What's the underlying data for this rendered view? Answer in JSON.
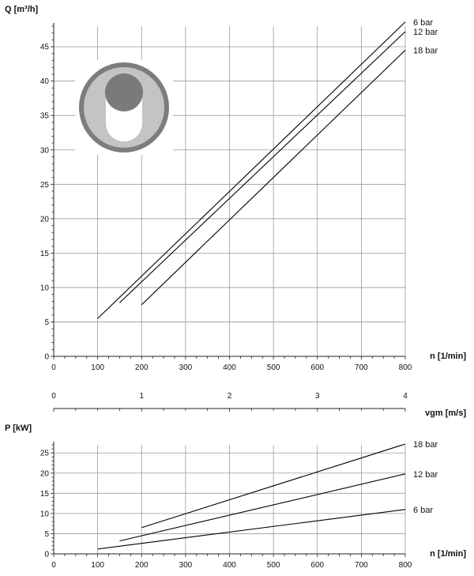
{
  "chart_data": [
    {
      "type": "line",
      "ylabel": "Q [m³/h]",
      "xlabel": "n [1/min]",
      "xlim": [
        0,
        800
      ],
      "ylim": [
        0,
        48
      ],
      "xticks": [
        0,
        100,
        200,
        300,
        400,
        500,
        600,
        700,
        800
      ],
      "yticks": [
        0,
        5,
        10,
        15,
        20,
        25,
        30,
        35,
        40,
        45
      ],
      "grid": true,
      "series": [
        {
          "name": "6 bar",
          "x": [
            100,
            800
          ],
          "y": [
            5.5,
            48.6
          ]
        },
        {
          "name": "12 bar",
          "x": [
            150,
            800
          ],
          "y": [
            7.8,
            47.2
          ]
        },
        {
          "name": "18 bar",
          "x": [
            200,
            800
          ],
          "y": [
            7.5,
            44.5
          ]
        }
      ]
    },
    {
      "type": "axis",
      "xlabel": "vgm [m/s]",
      "xlim": [
        0,
        4
      ],
      "xticks": [
        0,
        1,
        2,
        3,
        4
      ]
    },
    {
      "type": "line",
      "ylabel": "P [kW]",
      "xlabel": "n [1/min]",
      "xlim": [
        0,
        800
      ],
      "ylim": [
        0,
        27
      ],
      "xticks": [
        0,
        100,
        200,
        300,
        400,
        500,
        600,
        700,
        800
      ],
      "yticks": [
        0,
        5,
        10,
        15,
        20,
        25
      ],
      "grid": true,
      "series": [
        {
          "name": "18 bar",
          "x": [
            200,
            800
          ],
          "y": [
            6.5,
            27.2
          ]
        },
        {
          "name": "12 bar",
          "x": [
            150,
            800
          ],
          "y": [
            3.2,
            19.8
          ]
        },
        {
          "name": "6 bar",
          "x": [
            100,
            800
          ],
          "y": [
            1.2,
            11.0
          ]
        }
      ]
    }
  ]
}
